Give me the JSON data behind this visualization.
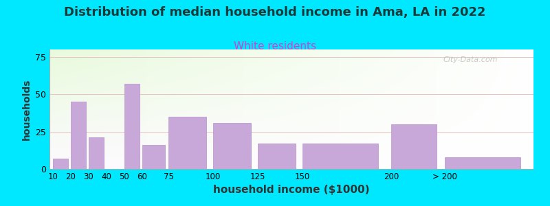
{
  "title": "Distribution of median household income in Ama, LA in 2022",
  "subtitle": "White residents",
  "xlabel": "household income ($1000)",
  "ylabel": "households",
  "title_fontsize": 13,
  "subtitle_fontsize": 11,
  "subtitle_color": "#cc44cc",
  "xlabel_fontsize": 11,
  "ylabel_fontsize": 10,
  "background_outer": "#00e8ff",
  "bar_color": "#c8a8d8",
  "bar_edge_color": "#b890c8",
  "ylim": [
    0,
    80
  ],
  "yticks": [
    0,
    25,
    50,
    75
  ],
  "watermark": "City-Data.com",
  "bin_edges": [
    10,
    20,
    30,
    40,
    50,
    60,
    75,
    100,
    125,
    150,
    200,
    230,
    280
  ],
  "bin_labels": [
    "10",
    "20",
    "30",
    "40",
    "50",
    "60",
    "75",
    "100",
    "125",
    "150",
    "200",
    "> 200"
  ],
  "values": [
    7,
    45,
    21,
    0,
    57,
    16,
    35,
    31,
    17,
    17,
    30,
    8
  ]
}
